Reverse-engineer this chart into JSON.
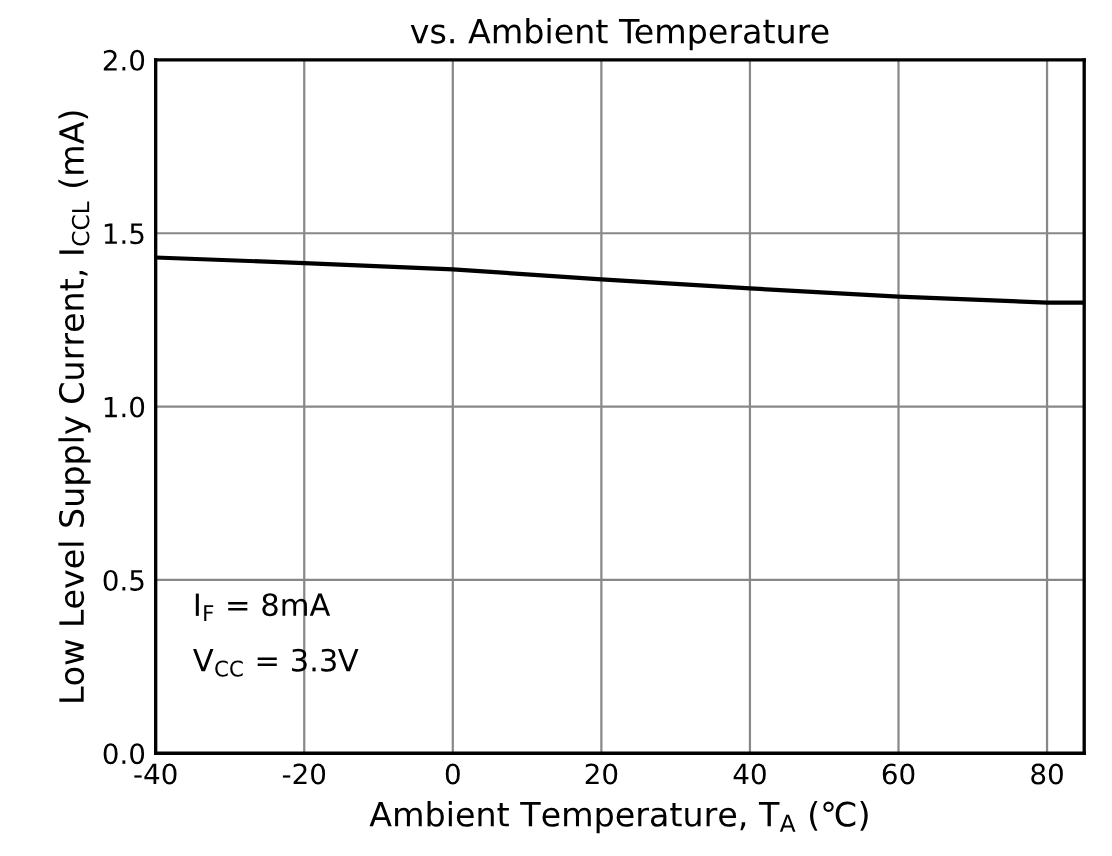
{
  "chart_data": {
    "type": "line",
    "title": "vs. Ambient Temperature",
    "xlabel": "Ambient Temperature, T$_{A}$ (℃)",
    "ylabel": "Low Level Supply Current, I$_{CCL}$ (mA)",
    "x": [
      -40,
      -20,
      0,
      20,
      40,
      60,
      80,
      85
    ],
    "series": [
      {
        "color": "#000000",
        "values": [
          1.43,
          1.414,
          1.396,
          1.367,
          1.341,
          1.317,
          1.3,
          1.3
        ]
      }
    ],
    "xlim": [
      -40,
      85
    ],
    "xticks": [
      -40,
      -20,
      0,
      20,
      40,
      60,
      80
    ],
    "ylim": [
      0,
      2
    ],
    "yticks": [
      {
        "value": 0,
        "label": "0.0"
      },
      {
        "value": 0.5,
        "label": "0.5"
      },
      {
        "value": 1,
        "label": "1.0"
      },
      {
        "value": 1.5,
        "label": "1.5"
      },
      {
        "value": 2,
        "label": "2.0"
      }
    ],
    "grid": true,
    "marker": "none",
    "line_style": "solid",
    "annotations": [
      "I$_{F}$ = 8mA",
      "V$_{CC}$ = 3.3V"
    ]
  }
}
